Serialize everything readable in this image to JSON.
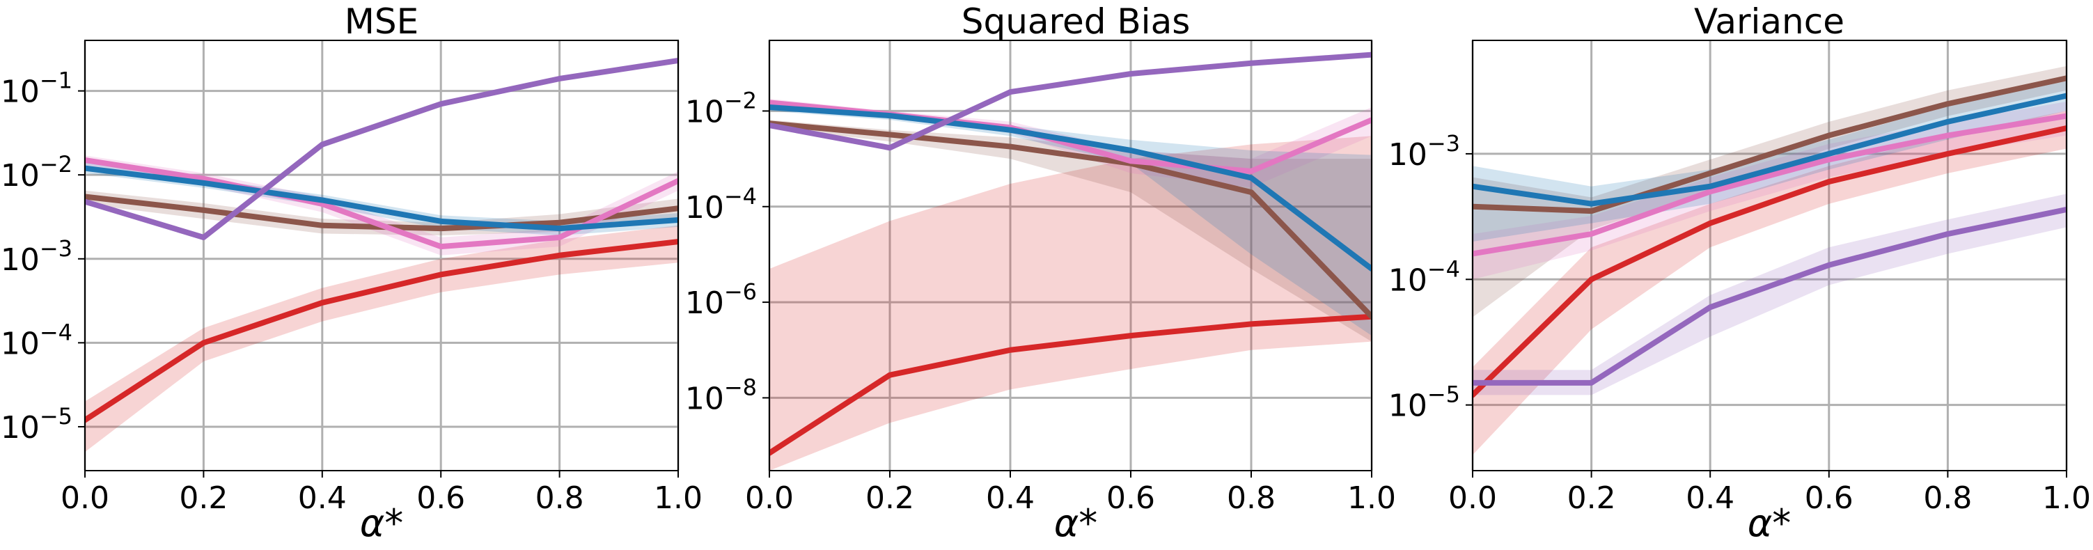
{
  "chart_data": [
    {
      "type": "line",
      "title": "MSE",
      "xlabel": "α*",
      "yscale": "log",
      "x": [
        0.0,
        0.2,
        0.4,
        0.6,
        0.8,
        1.0
      ],
      "xlim": [
        0.0,
        1.0
      ],
      "ylim": [
        3e-06,
        0.4
      ],
      "xticks": [
        "0.0",
        "0.2",
        "0.4",
        "0.6",
        "0.8",
        "1.0"
      ],
      "yticks": [
        {
          "exp": "-5",
          "value": 1e-05
        },
        {
          "exp": "-4",
          "value": 0.0001
        },
        {
          "exp": "-3",
          "value": 0.001
        },
        {
          "exp": "-2",
          "value": 0.01
        },
        {
          "exp": "-1",
          "value": 0.1
        }
      ],
      "grid": true,
      "series": [
        {
          "color": "#d62728",
          "values": [
            1.2e-05,
            0.0001,
            0.0003,
            0.00065,
            0.0011,
            0.0016
          ],
          "band_low": [
            5e-06,
            6e-05,
            0.00018,
            0.0004,
            0.00065,
            0.0009
          ],
          "band_high": [
            2e-05,
            0.00015,
            0.00045,
            0.001,
            0.0017,
            0.0025
          ]
        },
        {
          "color": "#8c564b",
          "values": [
            0.0055,
            0.0038,
            0.0025,
            0.0023,
            0.0027,
            0.004
          ],
          "band_low": [
            0.0045,
            0.003,
            0.002,
            0.0019,
            0.0021,
            0.003
          ],
          "band_high": [
            0.0065,
            0.0046,
            0.003,
            0.0027,
            0.0034,
            0.0052
          ]
        },
        {
          "color": "#e377c2",
          "values": [
            0.015,
            0.009,
            0.0045,
            0.0014,
            0.0018,
            0.0085
          ],
          "band_low": [
            0.013,
            0.0075,
            0.0036,
            0.0011,
            0.0014,
            0.0065
          ],
          "band_high": [
            0.017,
            0.0105,
            0.0055,
            0.0018,
            0.0023,
            0.011
          ]
        },
        {
          "color": "#1f77b4",
          "values": [
            0.012,
            0.008,
            0.005,
            0.0028,
            0.0023,
            0.0029
          ],
          "band_low": [
            0.0105,
            0.007,
            0.0043,
            0.0023,
            0.0019,
            0.0024
          ],
          "band_high": [
            0.014,
            0.009,
            0.0058,
            0.0033,
            0.0028,
            0.0035
          ]
        },
        {
          "color": "#9467bd",
          "values": [
            0.0048,
            0.0018,
            0.023,
            0.07,
            0.14,
            0.23
          ]
        }
      ]
    },
    {
      "type": "line",
      "title": "Squared Bias",
      "xlabel": "α*",
      "yscale": "log",
      "x": [
        0.0,
        0.2,
        0.4,
        0.6,
        0.8,
        1.0
      ],
      "xlim": [
        0.0,
        1.0
      ],
      "ylim": [
        3e-10,
        0.3
      ],
      "xticks": [
        "0.0",
        "0.2",
        "0.4",
        "0.6",
        "0.8",
        "1.0"
      ],
      "yticks": [
        {
          "exp": "-8",
          "value": 1e-08
        },
        {
          "exp": "-6",
          "value": 1e-06
        },
        {
          "exp": "-4",
          "value": 0.0001
        },
        {
          "exp": "-2",
          "value": 0.01
        }
      ],
      "grid": true,
      "series": [
        {
          "color": "#d62728",
          "values": [
            7e-10,
            3e-08,
            1e-07,
            2e-07,
            3.5e-07,
            5e-07
          ],
          "band_low": [
            3e-10,
            3e-09,
            1.5e-08,
            4e-08,
            1e-07,
            1.5e-07
          ],
          "band_high": [
            5e-06,
            5e-05,
            0.0003,
            0.001,
            0.002,
            0.003
          ]
        },
        {
          "color": "#8c564b",
          "values": [
            0.0055,
            0.0032,
            0.0018,
            0.0008,
            0.0002,
            5e-07
          ],
          "band_low": [
            0.0045,
            0.0023,
            0.001,
            0.0002,
            5e-06,
            1.5e-07
          ],
          "band_high": [
            0.0065,
            0.004,
            0.0028,
            0.0015,
            0.001,
            0.001
          ]
        },
        {
          "color": "#e377c2",
          "values": [
            0.015,
            0.0085,
            0.0045,
            0.0009,
            0.00055,
            0.0065
          ],
          "band_low": [
            0.012,
            0.007,
            0.0035,
            0.0005,
            0.00025,
            0.003
          ],
          "band_high": [
            0.018,
            0.01,
            0.006,
            0.0015,
            0.001,
            0.012
          ]
        },
        {
          "color": "#1f77b4",
          "values": [
            0.012,
            0.008,
            0.004,
            0.0015,
            0.0004,
            5e-06
          ],
          "band_low": [
            0.01,
            0.0065,
            0.003,
            0.0008,
            1e-05,
            2e-07
          ],
          "band_high": [
            0.014,
            0.0095,
            0.005,
            0.0025,
            0.0015,
            0.0012
          ]
        },
        {
          "color": "#9467bd",
          "values": [
            0.005,
            0.0017,
            0.025,
            0.06,
            0.1,
            0.15
          ]
        }
      ]
    },
    {
      "type": "line",
      "title": "Variance",
      "xlabel": "α*",
      "yscale": "log",
      "x": [
        0.0,
        0.2,
        0.4,
        0.6,
        0.8,
        1.0
      ],
      "xlim": [
        0.0,
        1.0
      ],
      "ylim": [
        3e-06,
        0.008
      ],
      "xticks": [
        "0.0",
        "0.2",
        "0.4",
        "0.6",
        "0.8",
        "1.0"
      ],
      "yticks": [
        {
          "exp": "-5",
          "value": 1e-05
        },
        {
          "exp": "-4",
          "value": 0.0001
        },
        {
          "exp": "-3",
          "value": 0.001
        }
      ],
      "grid": true,
      "series": [
        {
          "color": "#d62728",
          "values": [
            1.2e-05,
            0.0001,
            0.00028,
            0.0006,
            0.001,
            0.0016
          ],
          "band_low": [
            4e-06,
            4e-05,
            0.00018,
            0.0004,
            0.0007,
            0.0011
          ],
          "band_high": [
            2e-05,
            0.00018,
            0.0004,
            0.0008,
            0.0014,
            0.0022
          ]
        },
        {
          "color": "#8c564b",
          "values": [
            0.00038,
            0.00035,
            0.0007,
            0.0014,
            0.0025,
            0.004
          ],
          "band_low": [
            5e-05,
            0.00025,
            0.0005,
            0.0011,
            0.002,
            0.0032
          ],
          "band_high": [
            0.00065,
            0.00045,
            0.0009,
            0.0018,
            0.0032,
            0.005
          ]
        },
        {
          "color": "#e377c2",
          "values": [
            0.00016,
            0.00023,
            0.0005,
            0.0009,
            0.0014,
            0.002
          ],
          "band_low": [
            0.0001,
            0.00017,
            0.00035,
            0.00065,
            0.001,
            0.0014
          ],
          "band_high": [
            0.00023,
            0.00032,
            0.00065,
            0.0012,
            0.0018,
            0.0026
          ]
        },
        {
          "color": "#1f77b4",
          "values": [
            0.00055,
            0.0004,
            0.00055,
            0.001,
            0.0018,
            0.0029
          ],
          "band_low": [
            0.0002,
            0.00028,
            0.0004,
            0.00075,
            0.0013,
            0.0022
          ],
          "band_high": [
            0.0008,
            0.00055,
            0.00075,
            0.0013,
            0.0024,
            0.0038
          ]
        },
        {
          "color": "#9467bd",
          "values": [
            1.5e-05,
            1.5e-05,
            6e-05,
            0.00013,
            0.00023,
            0.00036
          ],
          "band_low": [
            1.2e-05,
            1.2e-05,
            3.5e-05,
            9e-05,
            0.00016,
            0.00026
          ],
          "band_high": [
            1.9e-05,
            1.9e-05,
            7.5e-05,
            0.00018,
            0.0003,
            0.00048
          ]
        }
      ]
    }
  ]
}
